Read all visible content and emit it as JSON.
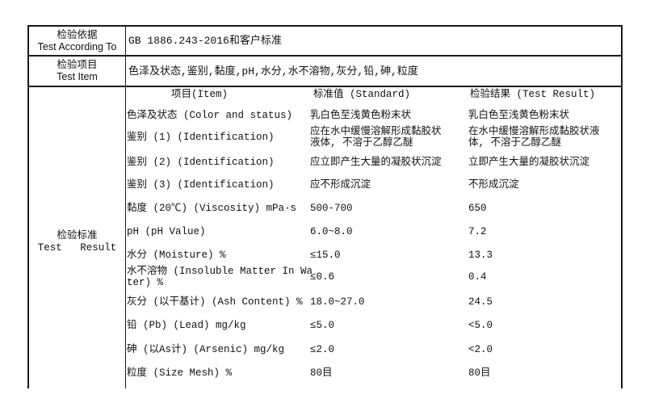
{
  "basis": {
    "label_cn": "检验依据",
    "label_en": "Test According To",
    "value": "GB 1886.243-2016和客户标准"
  },
  "items": {
    "label_cn": "检验项目",
    "label_en": "Test Item",
    "value": "色泽及状态,鉴别,黏度,pH,水分,水不溶物,灰分,铅,砷,粒度"
  },
  "results": {
    "label_cn": "检验标准",
    "label_en": "Test   Result",
    "headers": [
      "项目(Item)",
      "标准值 (Standard)",
      "检验结果 (Test Result)"
    ],
    "rows": [
      {
        "item": [
          "色泽及状态 (Color and status)"
        ],
        "standard": [
          "乳白色至浅黄色粉末状"
        ],
        "result": [
          "乳白色至浅黄色粉末状"
        ]
      },
      {
        "item": [
          "鉴别 (1) (Identification)"
        ],
        "standard": [
          "应在水中缓慢溶解形成黏胶状",
          "液体, 不溶于乙醇乙醚"
        ],
        "result": [
          "在水中缓慢溶解形成黏胶状液",
          "体, 不溶于乙醇乙醚"
        ]
      },
      {
        "item": [
          "鉴别 (2) (Identification)"
        ],
        "standard": [
          "应立即产生大量的凝胶状沉淀"
        ],
        "result": [
          "立即产生大量的凝胶状沉淀"
        ]
      },
      {
        "item": [
          "鉴别 (3) (Identification)"
        ],
        "standard": [
          "应不形成沉淀"
        ],
        "result": [
          "不形成沉淀"
        ]
      },
      {
        "item": [
          "黏度 (20℃) (Viscosity) mPa·s"
        ],
        "standard": [
          "500-700"
        ],
        "result": [
          "650"
        ]
      },
      {
        "item": [
          "pH (pH Value)"
        ],
        "standard": [
          "6.0~8.0"
        ],
        "result": [
          "7.2"
        ]
      },
      {
        "item": [
          "水分 (Moisture) %"
        ],
        "standard": [
          "≤15.0"
        ],
        "result": [
          "13.3"
        ]
      },
      {
        "item": [
          "水不溶物 (Insoluble Matter In Wa",
          "ter) %"
        ],
        "standard": [
          "≤0.6"
        ],
        "result": [
          "0.4"
        ]
      },
      {
        "item": [
          "灰分 (以干基计) (Ash Content) %"
        ],
        "standard": [
          "18.0~27.0"
        ],
        "result": [
          "24.5"
        ]
      },
      {
        "item": [
          "铅 (Pb) (Lead) mg/kg"
        ],
        "standard": [
          "≤5.0"
        ],
        "result": [
          "<5.0"
        ]
      },
      {
        "item": [
          "砷 (以As计) (Arsenic) mg/kg"
        ],
        "standard": [
          "≤2.0"
        ],
        "result": [
          "<2.0"
        ]
      },
      {
        "item": [
          "粒度 (Size Mesh) %"
        ],
        "standard": [
          "80目"
        ],
        "result": [
          "80目"
        ]
      }
    ]
  }
}
